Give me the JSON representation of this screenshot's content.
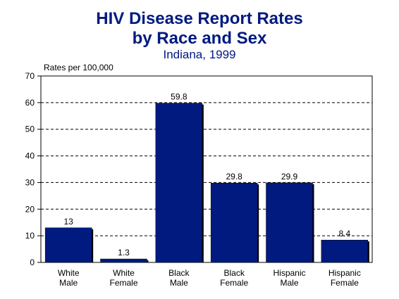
{
  "chart_data": {
    "type": "bar",
    "title": "HIV Disease Report Rates",
    "title_line2": "by Race and Sex",
    "subtitle": "Indiana, 1999",
    "ylabel": "Rates per 100,000",
    "xlabel": "",
    "ylim": [
      0,
      70
    ],
    "yticks": [
      0,
      10,
      20,
      30,
      40,
      50,
      60,
      70
    ],
    "grid": "dashed-horizontal",
    "categories": [
      [
        "White",
        "Male"
      ],
      [
        "White",
        "Female"
      ],
      [
        "Black",
        "Male"
      ],
      [
        "Black",
        "Female"
      ],
      [
        "Hispanic",
        "Male"
      ],
      [
        "Hispanic",
        "Female"
      ]
    ],
    "values": [
      13,
      1.3,
      59.8,
      29.8,
      29.9,
      8.4
    ],
    "value_labels": [
      "13",
      "1.3",
      "59.8",
      "29.8",
      "29.9",
      "8.4"
    ],
    "bar_color": "#001a80"
  }
}
